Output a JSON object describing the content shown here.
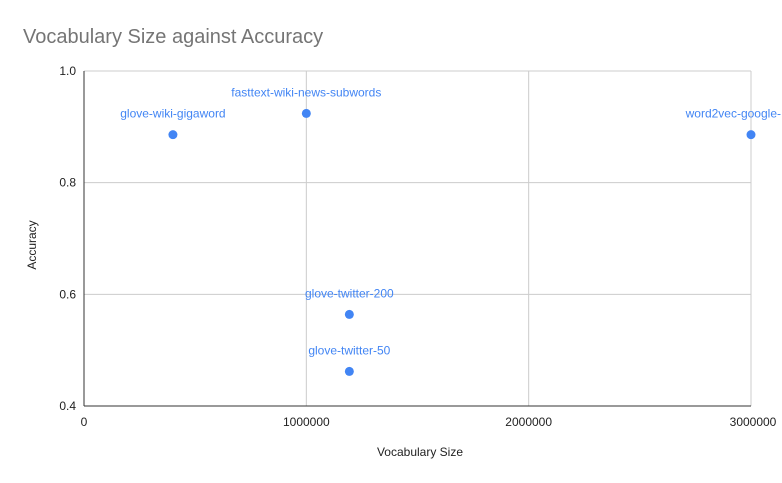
{
  "chart_data": {
    "type": "scatter",
    "title": "Vocabulary Size against Accuracy",
    "xlabel": "Vocabulary Size",
    "ylabel": "Accuracy",
    "xlim": [
      0,
      3000000
    ],
    "ylim": [
      0.4,
      1.0
    ],
    "x_ticks": [
      0,
      1000000,
      2000000,
      3000000
    ],
    "x_tick_labels": [
      "0",
      "1000000",
      "2000000",
      "3000000"
    ],
    "y_ticks": [
      0.4,
      0.6,
      0.8,
      1.0
    ],
    "y_tick_labels": [
      "0.4",
      "0.6",
      "0.8",
      "1.0"
    ],
    "grid": true,
    "point_color": "#4285f4",
    "points": [
      {
        "label": "glove-wiki-gigaword",
        "x": 400000,
        "y": 0.886
      },
      {
        "label": "fasttext-wiki-news-subwords",
        "x": 1000000,
        "y": 0.924
      },
      {
        "label": "word2vec-google-",
        "x": 3000000,
        "y": 0.886
      },
      {
        "label": "glove-twitter-200",
        "x": 1193514,
        "y": 0.564
      },
      {
        "label": "glove-twitter-50",
        "x": 1193514,
        "y": 0.462
      }
    ]
  }
}
